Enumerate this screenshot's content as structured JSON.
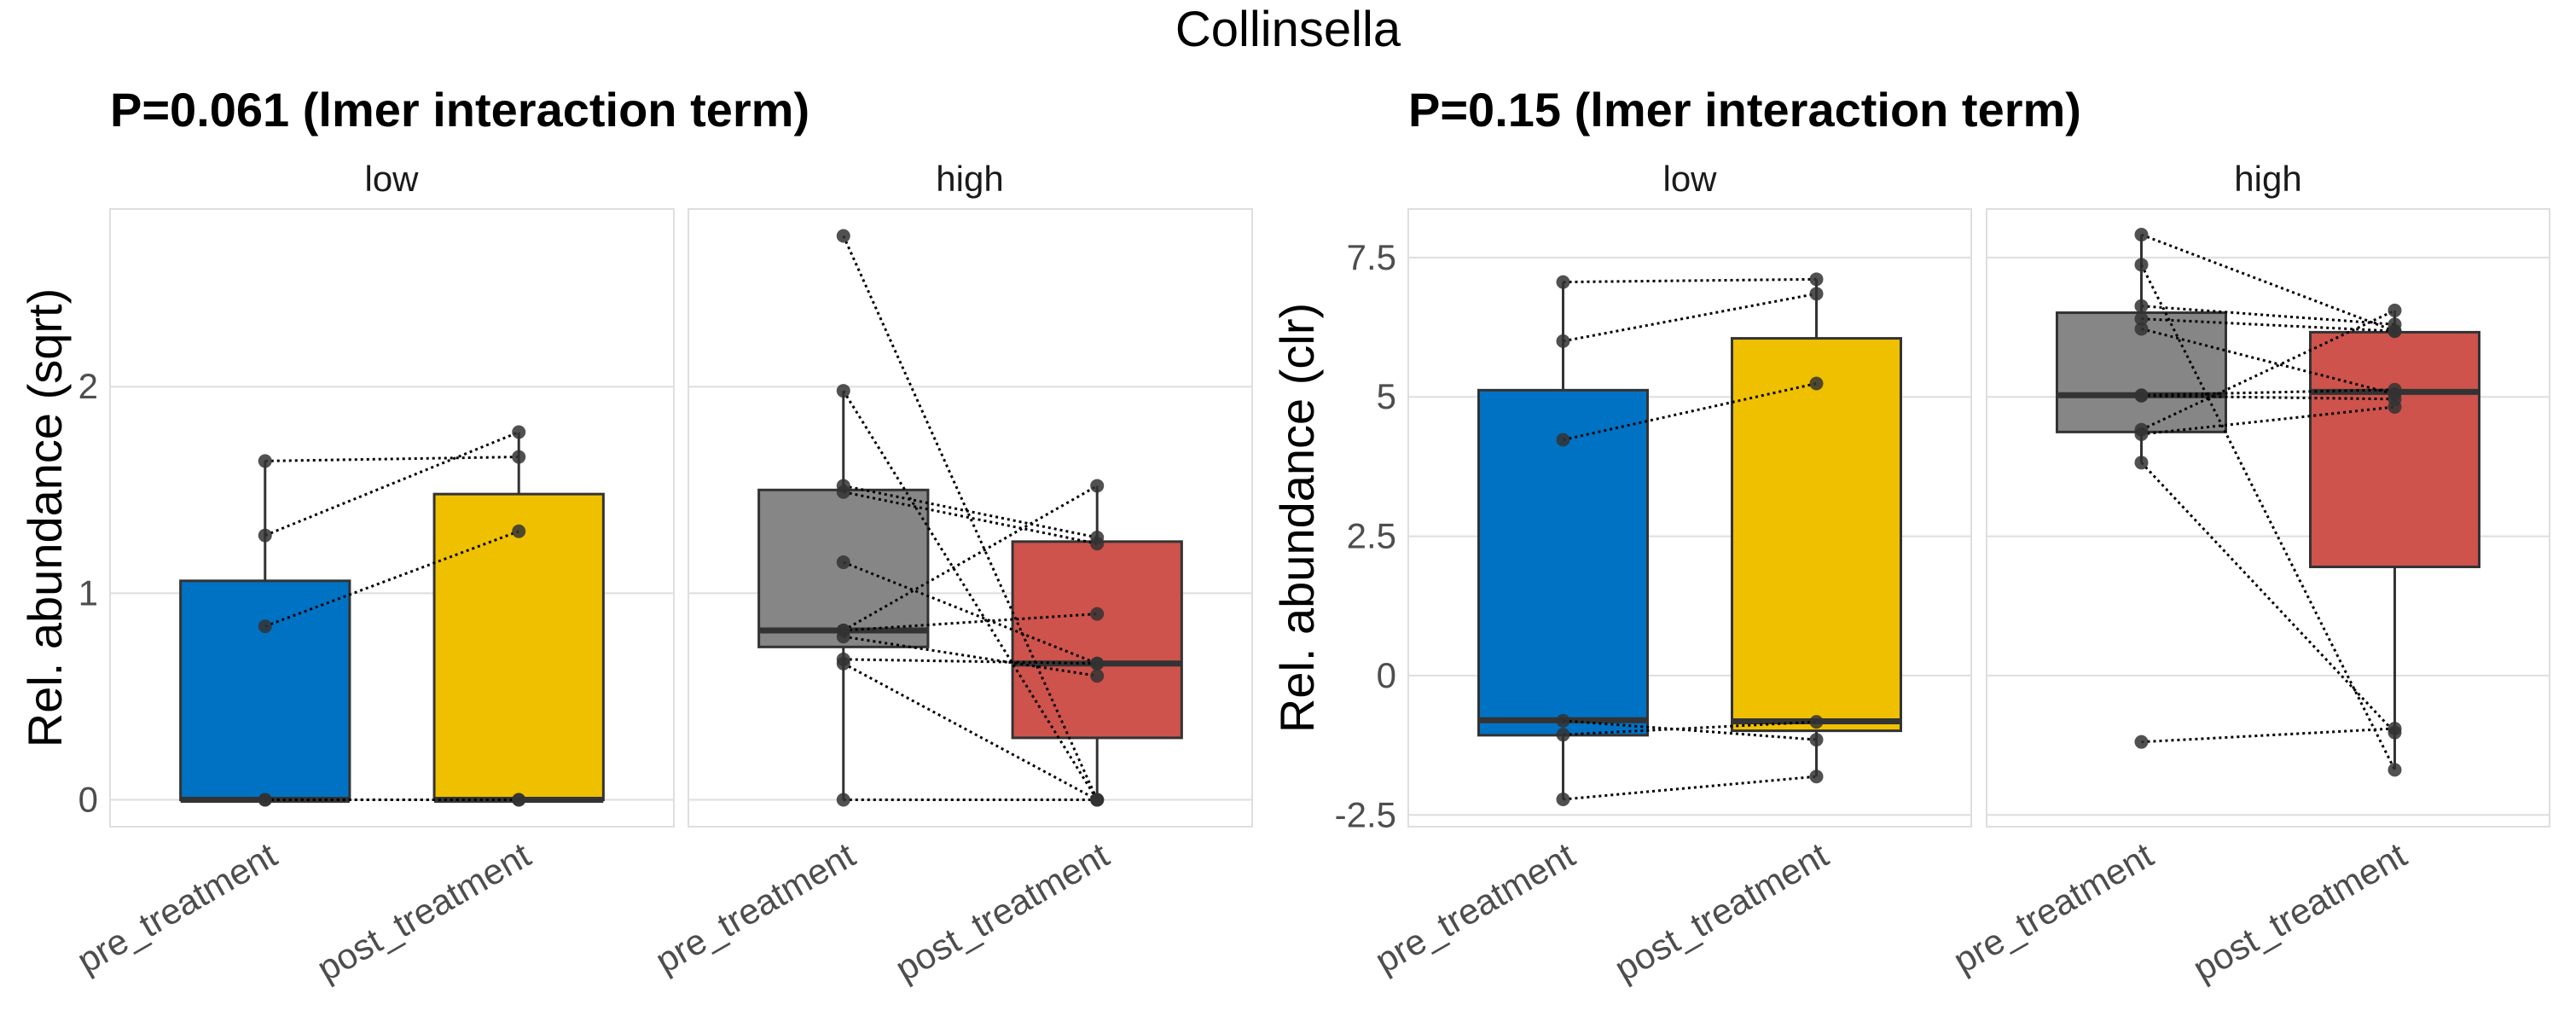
{
  "chart_data": {
    "type": "boxplot",
    "title": "Collinsella",
    "colors": {
      "pre_low": "#0072C4",
      "post_low": "#EFC000",
      "pre_high": "#868686",
      "post_high": "#CD534C",
      "outline": "#333333",
      "grid": "#DEDEDE",
      "point": "#333333"
    },
    "panels": [
      {
        "subtitle": "P=0.061 (lmer interaction term)",
        "ylabel": "Rel. abundance (sqrt)",
        "ylim": [
          -0.13,
          2.86
        ],
        "yticks": [
          0,
          1,
          2
        ],
        "ytick_labels": [
          "0",
          "1",
          "2"
        ],
        "facets": [
          {
            "label": "low",
            "categories": [
              "pre_treatment",
              "post_treatment"
            ],
            "boxes": [
              {
                "group": "pre_treatment",
                "color_key": "pre_low",
                "q1": 0,
                "median": 0,
                "q3": 1.06,
                "whisker_low": 0,
                "whisker_high": 1.64,
                "outliers": []
              },
              {
                "group": "post_treatment",
                "color_key": "post_low",
                "q1": 0,
                "median": 0,
                "q3": 1.48,
                "whisker_low": 0,
                "whisker_high": 1.78,
                "outliers": []
              }
            ],
            "pairs": [
              [
                1.64,
                1.66
              ],
              [
                1.28,
                1.78
              ],
              [
                0.84,
                1.3
              ],
              [
                0,
                0
              ],
              [
                0,
                0
              ]
            ]
          },
          {
            "label": "high",
            "categories": [
              "pre_treatment",
              "post_treatment"
            ],
            "boxes": [
              {
                "group": "pre_treatment",
                "color_key": "pre_high",
                "q1": 0.74,
                "median": 0.82,
                "q3": 1.5,
                "whisker_low": 0,
                "whisker_high": 1.98,
                "outliers": [
                  2.73
                ]
              },
              {
                "group": "post_treatment",
                "color_key": "post_high",
                "q1": 0.3,
                "median": 0.66,
                "q3": 1.25,
                "whisker_low": 0,
                "whisker_high": 1.52,
                "outliers": []
              }
            ],
            "pairs": [
              [
                2.73,
                0
              ],
              [
                1.98,
                0
              ],
              [
                1.52,
                1.27
              ],
              [
                1.49,
                1.24
              ],
              [
                1.15,
                0.66
              ],
              [
                0.82,
                1.52
              ],
              [
                0.82,
                0.9
              ],
              [
                0.79,
                0.6
              ],
              [
                0.68,
                0.66
              ],
              [
                0.66,
                0
              ],
              [
                0,
                0
              ]
            ]
          }
        ]
      },
      {
        "subtitle": "P=0.15 (lmer interaction term)",
        "ylabel": "Rel. abundance (clr)",
        "ylim": [
          -2.71,
          8.37
        ],
        "yticks": [
          -2.5,
          0,
          2.5,
          5,
          7.5
        ],
        "ytick_labels": [
          "-2.5",
          "0",
          "2.5",
          "5",
          "7.5"
        ],
        "facets": [
          {
            "label": "low",
            "categories": [
              "pre_treatment",
              "post_treatment"
            ],
            "boxes": [
              {
                "group": "pre_treatment",
                "color_key": "pre_low",
                "q1": -1.07,
                "median": -0.8,
                "q3": 5.12,
                "whisker_low": -2.22,
                "whisker_high": 7.06,
                "outliers": []
              },
              {
                "group": "post_treatment",
                "color_key": "post_low",
                "q1": -0.99,
                "median": -0.82,
                "q3": 6.05,
                "whisker_low": -1.81,
                "whisker_high": 7.11,
                "outliers": []
              }
            ],
            "pairs": [
              [
                7.06,
                7.11
              ],
              [
                6.0,
                6.85
              ],
              [
                4.23,
                5.24
              ],
              [
                -0.81,
                -1.15
              ],
              [
                -1.06,
                -0.83
              ],
              [
                -2.22,
                -1.81
              ]
            ]
          },
          {
            "label": "high",
            "categories": [
              "pre_treatment",
              "post_treatment"
            ],
            "boxes": [
              {
                "group": "pre_treatment",
                "color_key": "pre_high",
                "q1": 4.37,
                "median": 5.03,
                "q3": 6.51,
                "whisker_low": 3.82,
                "whisker_high": 7.91,
                "outliers": [
                  -1.19
                ]
              },
              {
                "group": "post_treatment",
                "color_key": "post_high",
                "q1": 1.95,
                "median": 5.09,
                "q3": 6.16,
                "whisker_low": -1.69,
                "whisker_high": 6.55,
                "outliers": []
              }
            ],
            "pairs": [
              [
                7.91,
                6.18
              ],
              [
                7.37,
                -1.69
              ],
              [
                6.63,
                6.3
              ],
              [
                6.4,
                6.18
              ],
              [
                6.22,
                5.05
              ],
              [
                5.03,
                5.13
              ],
              [
                5.02,
                4.96
              ],
              [
                4.41,
                6.55
              ],
              [
                4.33,
                4.82
              ],
              [
                3.82,
                -1.02
              ],
              [
                -1.19,
                -0.95
              ]
            ]
          }
        ]
      }
    ]
  }
}
